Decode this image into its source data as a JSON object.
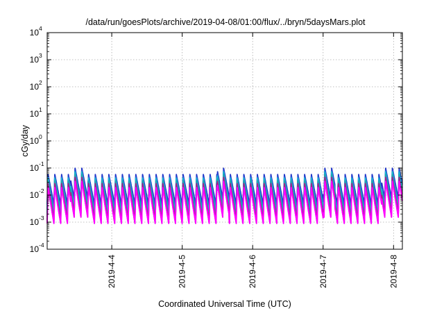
{
  "chart_data": {
    "type": "line",
    "title": "/data/run/goesPlots/archive/2019-04-08/01:00/flux/../bryn/5daysMars.plot",
    "xlabel": "Coordinated Universal Time (UTC)",
    "ylabel": "cGy/day",
    "yscale": "log",
    "ylim": [
      0.0001,
      10000
    ],
    "y_ticks": [
      {
        "base": "10",
        "exp": "4"
      },
      {
        "base": "10",
        "exp": "3"
      },
      {
        "base": "10",
        "exp": "2"
      },
      {
        "base": "10",
        "exp": "1"
      },
      {
        "base": "10",
        "exp": "0"
      },
      {
        "base": "10",
        "exp": "-1"
      },
      {
        "base": "10",
        "exp": "-2"
      },
      {
        "base": "10",
        "exp": "-3"
      },
      {
        "base": "10",
        "exp": "-4"
      }
    ],
    "x_ticks": [
      "2019-4-4",
      "2019-4-5",
      "2019-4-6",
      "2019-4-7",
      "2019-4-8"
    ],
    "xlim": [
      "2019-04-03T02:00",
      "2019-04-08T03:00"
    ],
    "grid": true,
    "pattern": {
      "description": "sawtooth series, sharp rise then decay, repeating about every 2.3 hours",
      "period_hours": 2.3,
      "peak_values": [
        0.06,
        0.05,
        0.045,
        0.035,
        0.028,
        0.02
      ],
      "trough_values": [
        0.0045,
        0.003,
        0.0022,
        0.0016,
        0.0012,
        0.0009
      ],
      "enhanced_intervals": [
        {
          "start": "2019-04-03T10:00",
          "end": "2019-04-03T16:00"
        },
        {
          "start": "2019-04-05T12:00",
          "end": "2019-04-05T16:00"
        },
        {
          "start": "2019-04-07T00:00",
          "end": "2019-04-07T04:00"
        },
        {
          "start": "2019-04-07T20:00",
          "end": "2019-04-08T03:00"
        }
      ]
    },
    "series": [
      {
        "color": "#1f35c8"
      },
      {
        "color": "#2f4dd8"
      },
      {
        "color": "#16b8d0"
      },
      {
        "color": "#1fa8a8"
      },
      {
        "color": "#a0228c"
      },
      {
        "color": "#c81ec8"
      },
      {
        "color": "#ff00ff"
      }
    ]
  }
}
